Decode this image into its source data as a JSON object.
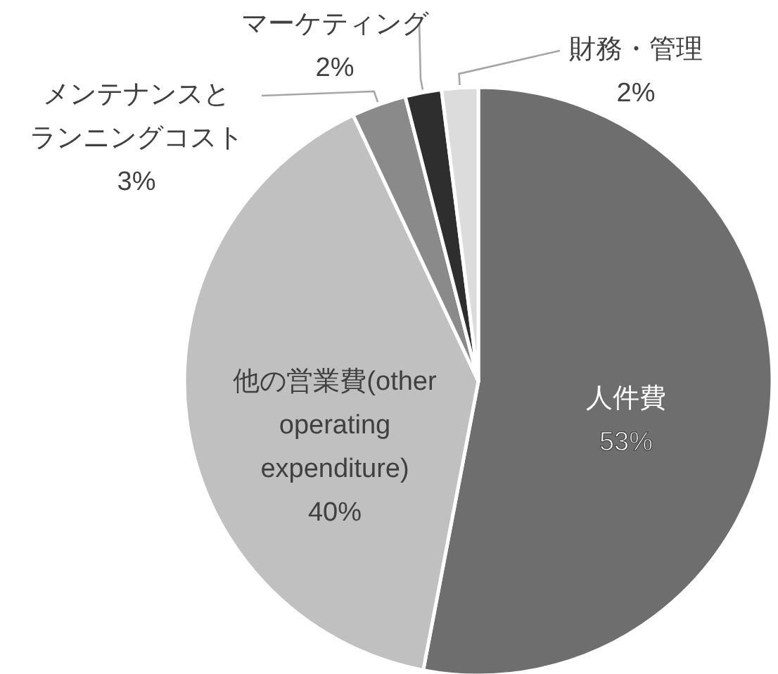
{
  "chart_data": {
    "type": "pie",
    "categories": [
      "人件費",
      "他の営業費(other operating expenditure)",
      "メンテナンスとランニングコスト",
      "マーケティング",
      "財務・管理"
    ],
    "values": [
      53,
      40,
      3,
      2,
      2
    ],
    "colors": [
      "#6e6e6e",
      "#c0c0c0",
      "#8a8a8a",
      "#2e2e2e",
      "#dcdcdc"
    ],
    "value_labels": [
      "53%",
      "40%",
      "3%",
      "2%",
      "2%"
    ]
  }
}
